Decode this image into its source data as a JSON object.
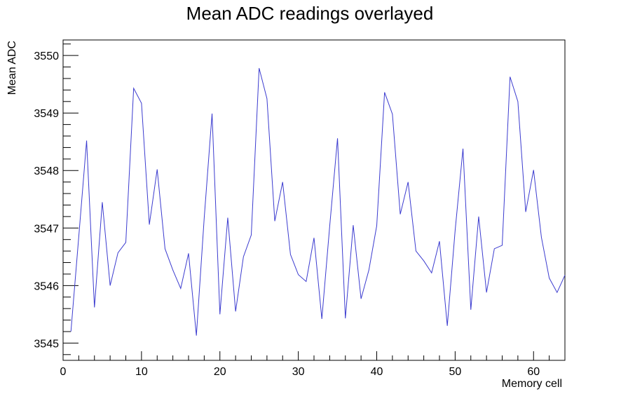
{
  "chart_data": {
    "type": "line",
    "title": "Mean ADC readings overlayed",
    "xlabel": "Memory cell",
    "ylabel": "Mean ADC",
    "xlim": [
      0,
      64
    ],
    "ylim": [
      3544.7,
      3550.27
    ],
    "x_ticks": [
      0,
      10,
      20,
      30,
      40,
      50,
      60
    ],
    "y_ticks": [
      3545,
      3546,
      3547,
      3548,
      3549,
      3550
    ],
    "grid": false,
    "line_color": "#3b3bcf",
    "x": [
      1,
      2,
      3,
      4,
      5,
      6,
      7,
      8,
      9,
      10,
      11,
      12,
      13,
      14,
      15,
      16,
      17,
      18,
      19,
      20,
      21,
      22,
      23,
      24,
      25,
      26,
      27,
      28,
      29,
      30,
      31,
      32,
      33,
      34,
      35,
      36,
      37,
      38,
      39,
      40,
      41,
      42,
      43,
      44,
      45,
      46,
      47,
      48,
      49,
      50,
      51,
      52,
      53,
      54,
      55,
      56,
      57,
      58,
      59,
      60,
      61,
      62,
      63,
      64
    ],
    "y": [
      3545.2,
      3546.85,
      3548.52,
      3545.62,
      3547.45,
      3546.0,
      3546.57,
      3546.75,
      3549.43,
      3549.17,
      3547.06,
      3548.02,
      3546.64,
      3546.27,
      3545.95,
      3546.56,
      3545.13,
      3547.18,
      3548.99,
      3545.5,
      3547.18,
      3545.55,
      3546.5,
      3546.88,
      3549.78,
      3549.25,
      3547.12,
      3547.8,
      3546.54,
      3546.19,
      3546.07,
      3546.83,
      3545.42,
      3547.03,
      3548.56,
      3545.43,
      3547.05,
      3545.77,
      3546.27,
      3547.04,
      3549.36,
      3548.98,
      3547.24,
      3547.8,
      3546.6,
      3546.43,
      3546.22,
      3546.77,
      3545.3,
      3546.96,
      3548.38,
      3545.58,
      3547.2,
      3545.88,
      3546.64,
      3546.7,
      3549.63,
      3549.2,
      3547.28,
      3548.01,
      3546.84,
      3546.13,
      3545.88,
      3546.18
    ]
  }
}
